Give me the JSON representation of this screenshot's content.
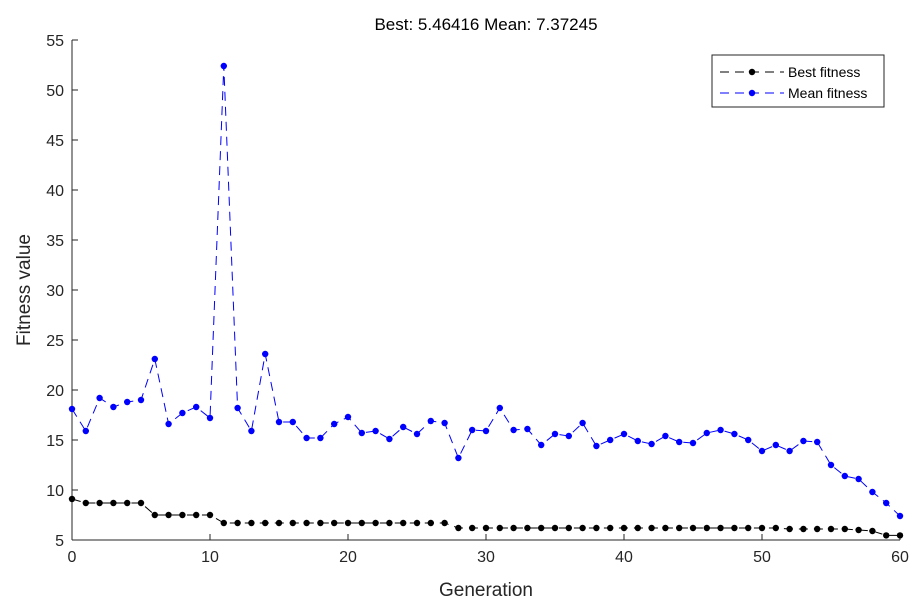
{
  "chart_data": {
    "type": "line",
    "title": "Best: 5.46416 Mean: 7.37245",
    "xlabel": "Generation",
    "ylabel": "Fitness value",
    "xlim": [
      0,
      60
    ],
    "ylim": [
      5,
      55
    ],
    "xticks": [
      0,
      10,
      20,
      30,
      40,
      50,
      60
    ],
    "yticks": [
      5,
      10,
      15,
      20,
      25,
      30,
      35,
      40,
      45,
      50,
      55
    ],
    "grid": false,
    "legend_position": "top-right",
    "series": [
      {
        "name": "Best fitness",
        "color": "#000000",
        "line_style": "dashed",
        "marker": "dot",
        "x": [
          0,
          1,
          2,
          3,
          4,
          5,
          6,
          7,
          8,
          9,
          10,
          11,
          12,
          13,
          14,
          15,
          16,
          17,
          18,
          19,
          20,
          21,
          22,
          23,
          24,
          25,
          26,
          27,
          28,
          29,
          30,
          31,
          32,
          33,
          34,
          35,
          36,
          37,
          38,
          39,
          40,
          41,
          42,
          43,
          44,
          45,
          46,
          47,
          48,
          49,
          50,
          51,
          52,
          53,
          54,
          55,
          56,
          57,
          58,
          59,
          60
        ],
        "y": [
          9.1,
          8.7,
          8.7,
          8.7,
          8.7,
          8.7,
          7.5,
          7.5,
          7.5,
          7.5,
          7.5,
          6.7,
          6.7,
          6.7,
          6.7,
          6.7,
          6.7,
          6.7,
          6.7,
          6.7,
          6.7,
          6.7,
          6.7,
          6.7,
          6.7,
          6.7,
          6.7,
          6.7,
          6.2,
          6.2,
          6.2,
          6.2,
          6.2,
          6.2,
          6.2,
          6.2,
          6.2,
          6.2,
          6.2,
          6.2,
          6.2,
          6.2,
          6.2,
          6.2,
          6.2,
          6.2,
          6.2,
          6.2,
          6.2,
          6.2,
          6.2,
          6.2,
          6.1,
          6.1,
          6.1,
          6.1,
          6.1,
          6.0,
          5.9,
          5.46,
          5.46
        ]
      },
      {
        "name": "Mean fitness",
        "color": "#0000ff",
        "line_style": "dashed",
        "marker": "dot",
        "x": [
          0,
          1,
          2,
          3,
          4,
          5,
          6,
          7,
          8,
          9,
          10,
          11,
          12,
          13,
          14,
          15,
          16,
          17,
          18,
          19,
          20,
          21,
          22,
          23,
          24,
          25,
          26,
          27,
          28,
          29,
          30,
          31,
          32,
          33,
          34,
          35,
          36,
          37,
          38,
          39,
          40,
          41,
          42,
          43,
          44,
          45,
          46,
          47,
          48,
          49,
          50,
          51,
          52,
          53,
          54,
          55,
          56,
          57,
          58,
          59,
          60
        ],
        "y": [
          18.1,
          15.9,
          19.2,
          18.3,
          18.8,
          19.0,
          23.1,
          16.6,
          17.7,
          18.3,
          17.2,
          52.4,
          18.2,
          15.9,
          23.6,
          16.8,
          16.8,
          15.2,
          15.2,
          16.6,
          17.3,
          15.7,
          15.9,
          15.1,
          16.3,
          15.6,
          16.9,
          16.7,
          13.2,
          16.0,
          15.9,
          18.2,
          16.0,
          16.1,
          14.5,
          15.6,
          15.4,
          16.7,
          14.4,
          15.0,
          15.6,
          14.9,
          14.6,
          15.4,
          14.8,
          14.7,
          15.7,
          16.0,
          15.6,
          15.0,
          13.9,
          14.5,
          13.9,
          14.9,
          14.8,
          12.5,
          11.4,
          11.1,
          9.8,
          8.7,
          7.4
        ]
      }
    ]
  }
}
